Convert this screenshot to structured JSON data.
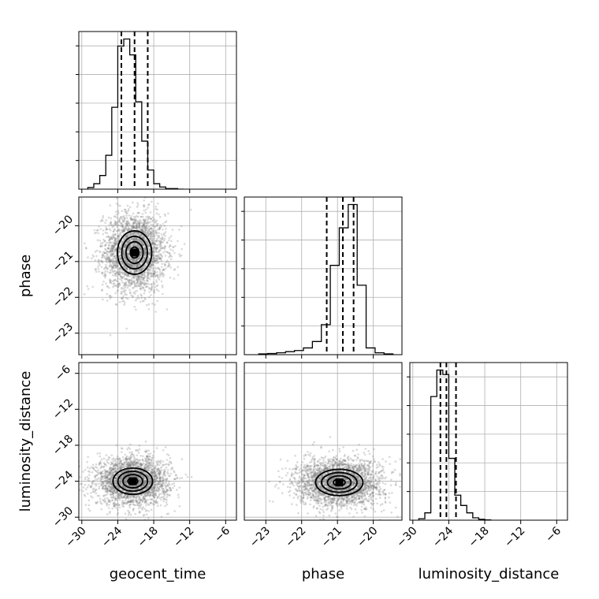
{
  "chart_data": {
    "type": "corner",
    "parameters": [
      "geocent_time",
      "phase",
      "luminosity_distance"
    ],
    "axis_labels": {
      "geocent_time": "geocent_time",
      "phase": "phase",
      "luminosity_distance": "luminosity_distance"
    },
    "ranges": {
      "geocent_time": [
        -30.5,
        -4.2
      ],
      "phase": [
        -23.6,
        -19.2
      ],
      "luminosity_distance": [
        -30.5,
        -4.2
      ]
    },
    "ticks": {
      "geocent_time": [
        -30,
        -24,
        -18,
        -12,
        -6
      ],
      "phase": [
        -23,
        -22,
        -21,
        -20
      ],
      "luminosity_distance": [
        -30,
        -24,
        -18,
        -12,
        -6
      ]
    },
    "tick_labels": {
      "geocent_time": [
        "−30",
        "−24",
        "−18",
        "−12",
        "−6"
      ],
      "phase": [
        "−23",
        "−22",
        "−21",
        "−20"
      ],
      "luminosity_distance": [
        "−30",
        "−24",
        "−18",
        "−12",
        "−6"
      ]
    },
    "quantiles": {
      "geocent_time": [
        -23.4,
        -21.2,
        -19.0
      ],
      "phase": [
        -21.3,
        -20.85,
        -20.55
      ],
      "luminosity_distance": [
        -25.4,
        -24.4,
        -22.8
      ]
    },
    "histograms": {
      "geocent_time": {
        "edges": [
          -29.0,
          -28.0,
          -27.0,
          -26.0,
          -25.0,
          -24.0,
          -23.0,
          -22.0,
          -21.0,
          -20.0,
          -19.0,
          -18.0,
          -17.0,
          -16.0,
          -15.0,
          -14.0,
          -13.0
        ],
        "counts": [
          3,
          10,
          25,
          62,
          150,
          262,
          275,
          246,
          160,
          88,
          35,
          10,
          4,
          1,
          1,
          0
        ]
      },
      "phase": {
        "edges": [
          -23.2,
          -22.95,
          -22.7,
          -22.45,
          -22.2,
          -21.95,
          -21.7,
          -21.45,
          -21.2,
          -20.95,
          -20.7,
          -20.45,
          -20.2,
          -19.95,
          -19.7,
          -19.45
        ],
        "counts": [
          2,
          3,
          5,
          8,
          11,
          18,
          35,
          80,
          238,
          338,
          400,
          185,
          18,
          5,
          2
        ]
      },
      "luminosity_distance": {
        "edges": [
          -29.0,
          -28.0,
          -27.0,
          -26.0,
          -25.0,
          -24.0,
          -23.0,
          -22.0,
          -21.0,
          -20.0,
          -19.0,
          -18.0,
          -17.0
        ],
        "counts": [
          5,
          25,
          420,
          510,
          495,
          210,
          85,
          50,
          25,
          8,
          3,
          1
        ]
      }
    },
    "samples_2d": [
      {
        "x": "geocent_time",
        "y": "phase",
        "center": [
          -21.2,
          -20.75
        ],
        "sigma": [
          2.6,
          0.55
        ],
        "n": 2600
      },
      {
        "x": "geocent_time",
        "y": "luminosity_distance",
        "center": [
          -21.5,
          -24.0
        ],
        "sigma": [
          3.0,
          2.0
        ],
        "n": 2600
      },
      {
        "x": "phase",
        "y": "luminosity_distance",
        "center": [
          -20.95,
          -24.2
        ],
        "sigma": [
          0.6,
          2.0
        ],
        "n": 2600
      }
    ],
    "contour_levels": [
      0.5,
      1.0,
      1.5,
      2.0
    ]
  }
}
